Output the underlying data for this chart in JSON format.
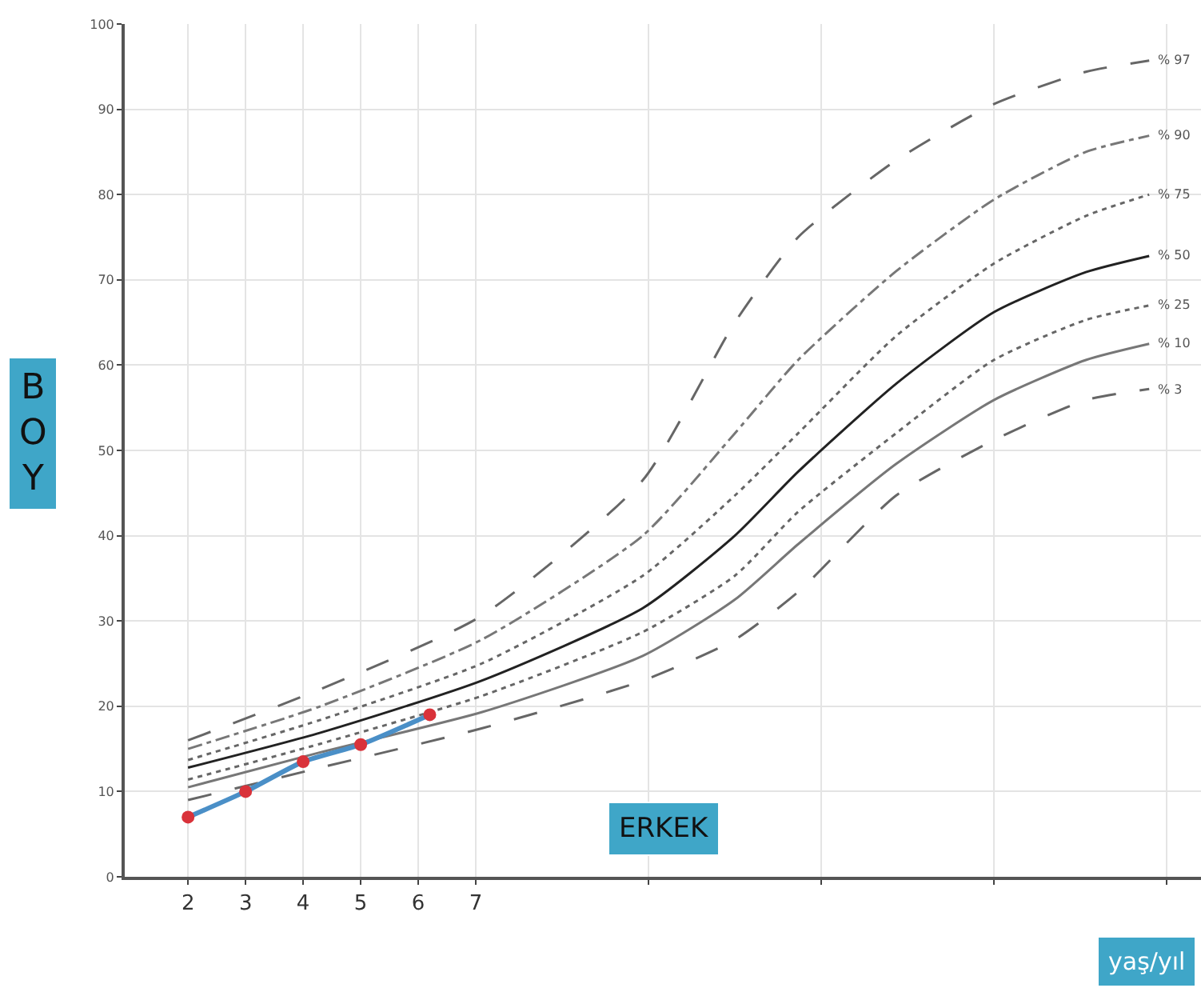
{
  "chart_data": {
    "type": "line",
    "xlabel": "yaş/yıl",
    "ylabel": "BOY",
    "annotations": [
      "ERKEK"
    ],
    "xlim": [
      0.9,
      19.6
    ],
    "xticks": [
      2,
      3,
      4,
      5,
      6,
      7,
      {
        "value": 10,
        "label": null
      },
      {
        "value": 13,
        "label": null
      },
      {
        "value": 16,
        "label": null
      },
      {
        "value": 19,
        "label": null
      }
    ],
    "ylim": [
      0,
      100
    ],
    "yticks": [
      0,
      10,
      20,
      30,
      40,
      50,
      60,
      70,
      80,
      90,
      100
    ],
    "grid": true,
    "legend": false,
    "marker": "none",
    "series": [
      {
        "name": "% 97",
        "color": "#666666",
        "line_style": "longdash",
        "x": [
          2,
          4.3,
          7.1,
          9.9,
          11.5,
          12.6,
          14.3,
          16,
          17.6,
          18.7
        ],
        "values": [
          16,
          22,
          30.6,
          46.5,
          65,
          75,
          84,
          90.6,
          94.4,
          95.7
        ]
      },
      {
        "name": "% 90",
        "color": "#777777",
        "line_style": "dashdot",
        "x": [
          2,
          4.3,
          7.1,
          9.9,
          11.5,
          12.6,
          14.3,
          16,
          17.6,
          18.7
        ],
        "values": [
          15,
          20,
          27.8,
          40,
          52,
          60.6,
          71,
          79.4,
          85,
          86.9
        ]
      },
      {
        "name": "% 75",
        "color": "#666666",
        "line_style": "dotted",
        "x": [
          2,
          4.3,
          7.1,
          9.9,
          11.5,
          12.6,
          14.3,
          16,
          17.6,
          18.7
        ],
        "values": [
          13.7,
          18.4,
          25,
          35.3,
          44.7,
          52,
          63.4,
          71.9,
          77.5,
          80
        ]
      },
      {
        "name": "% 50",
        "color": "#222222",
        "line_style": "solid",
        "x": [
          2,
          4.3,
          7.1,
          9.9,
          11.5,
          12.6,
          14.3,
          16,
          17.6,
          18.7
        ],
        "values": [
          12.8,
          16.9,
          23,
          31.5,
          40,
          47.5,
          57.8,
          66.2,
          70.9,
          72.8
        ]
      },
      {
        "name": "% 25",
        "color": "#666666",
        "line_style": "dotted",
        "x": [
          2,
          4.3,
          7.1,
          9.9,
          11.5,
          12.6,
          14.3,
          16,
          17.6,
          18.7
        ],
        "values": [
          11.4,
          15.6,
          21.2,
          28.7,
          35.3,
          42.8,
          52,
          60.6,
          65.3,
          67
        ]
      },
      {
        "name": "% 10",
        "color": "#777777",
        "line_style": "solid",
        "x": [
          2,
          4.3,
          7.1,
          9.9,
          11.5,
          12.6,
          14.3,
          16,
          17.6,
          18.7
        ],
        "values": [
          10.5,
          14.6,
          19.3,
          25.9,
          32.5,
          39,
          48.4,
          55.9,
          60.6,
          62.5
        ]
      },
      {
        "name": "% 3",
        "color": "#666666",
        "line_style": "longdash",
        "x": [
          2,
          4.3,
          7.1,
          9.9,
          11.5,
          12.6,
          14.3,
          16,
          17.6,
          18.7
        ],
        "values": [
          9,
          12.8,
          17.4,
          23,
          27.8,
          33.4,
          44.7,
          51.2,
          55.9,
          57.2
        ]
      },
      {
        "color": "#4a8fc7",
        "line_style": "solid",
        "marker": "circle",
        "colors": [
          "#d9323a",
          "#d9323a",
          "#d9323a",
          "#d9323a",
          "#d9323a"
        ],
        "x": [
          2,
          3,
          4,
          5,
          6.2
        ],
        "values": [
          7,
          10,
          13.5,
          15.5,
          19
        ]
      }
    ]
  }
}
